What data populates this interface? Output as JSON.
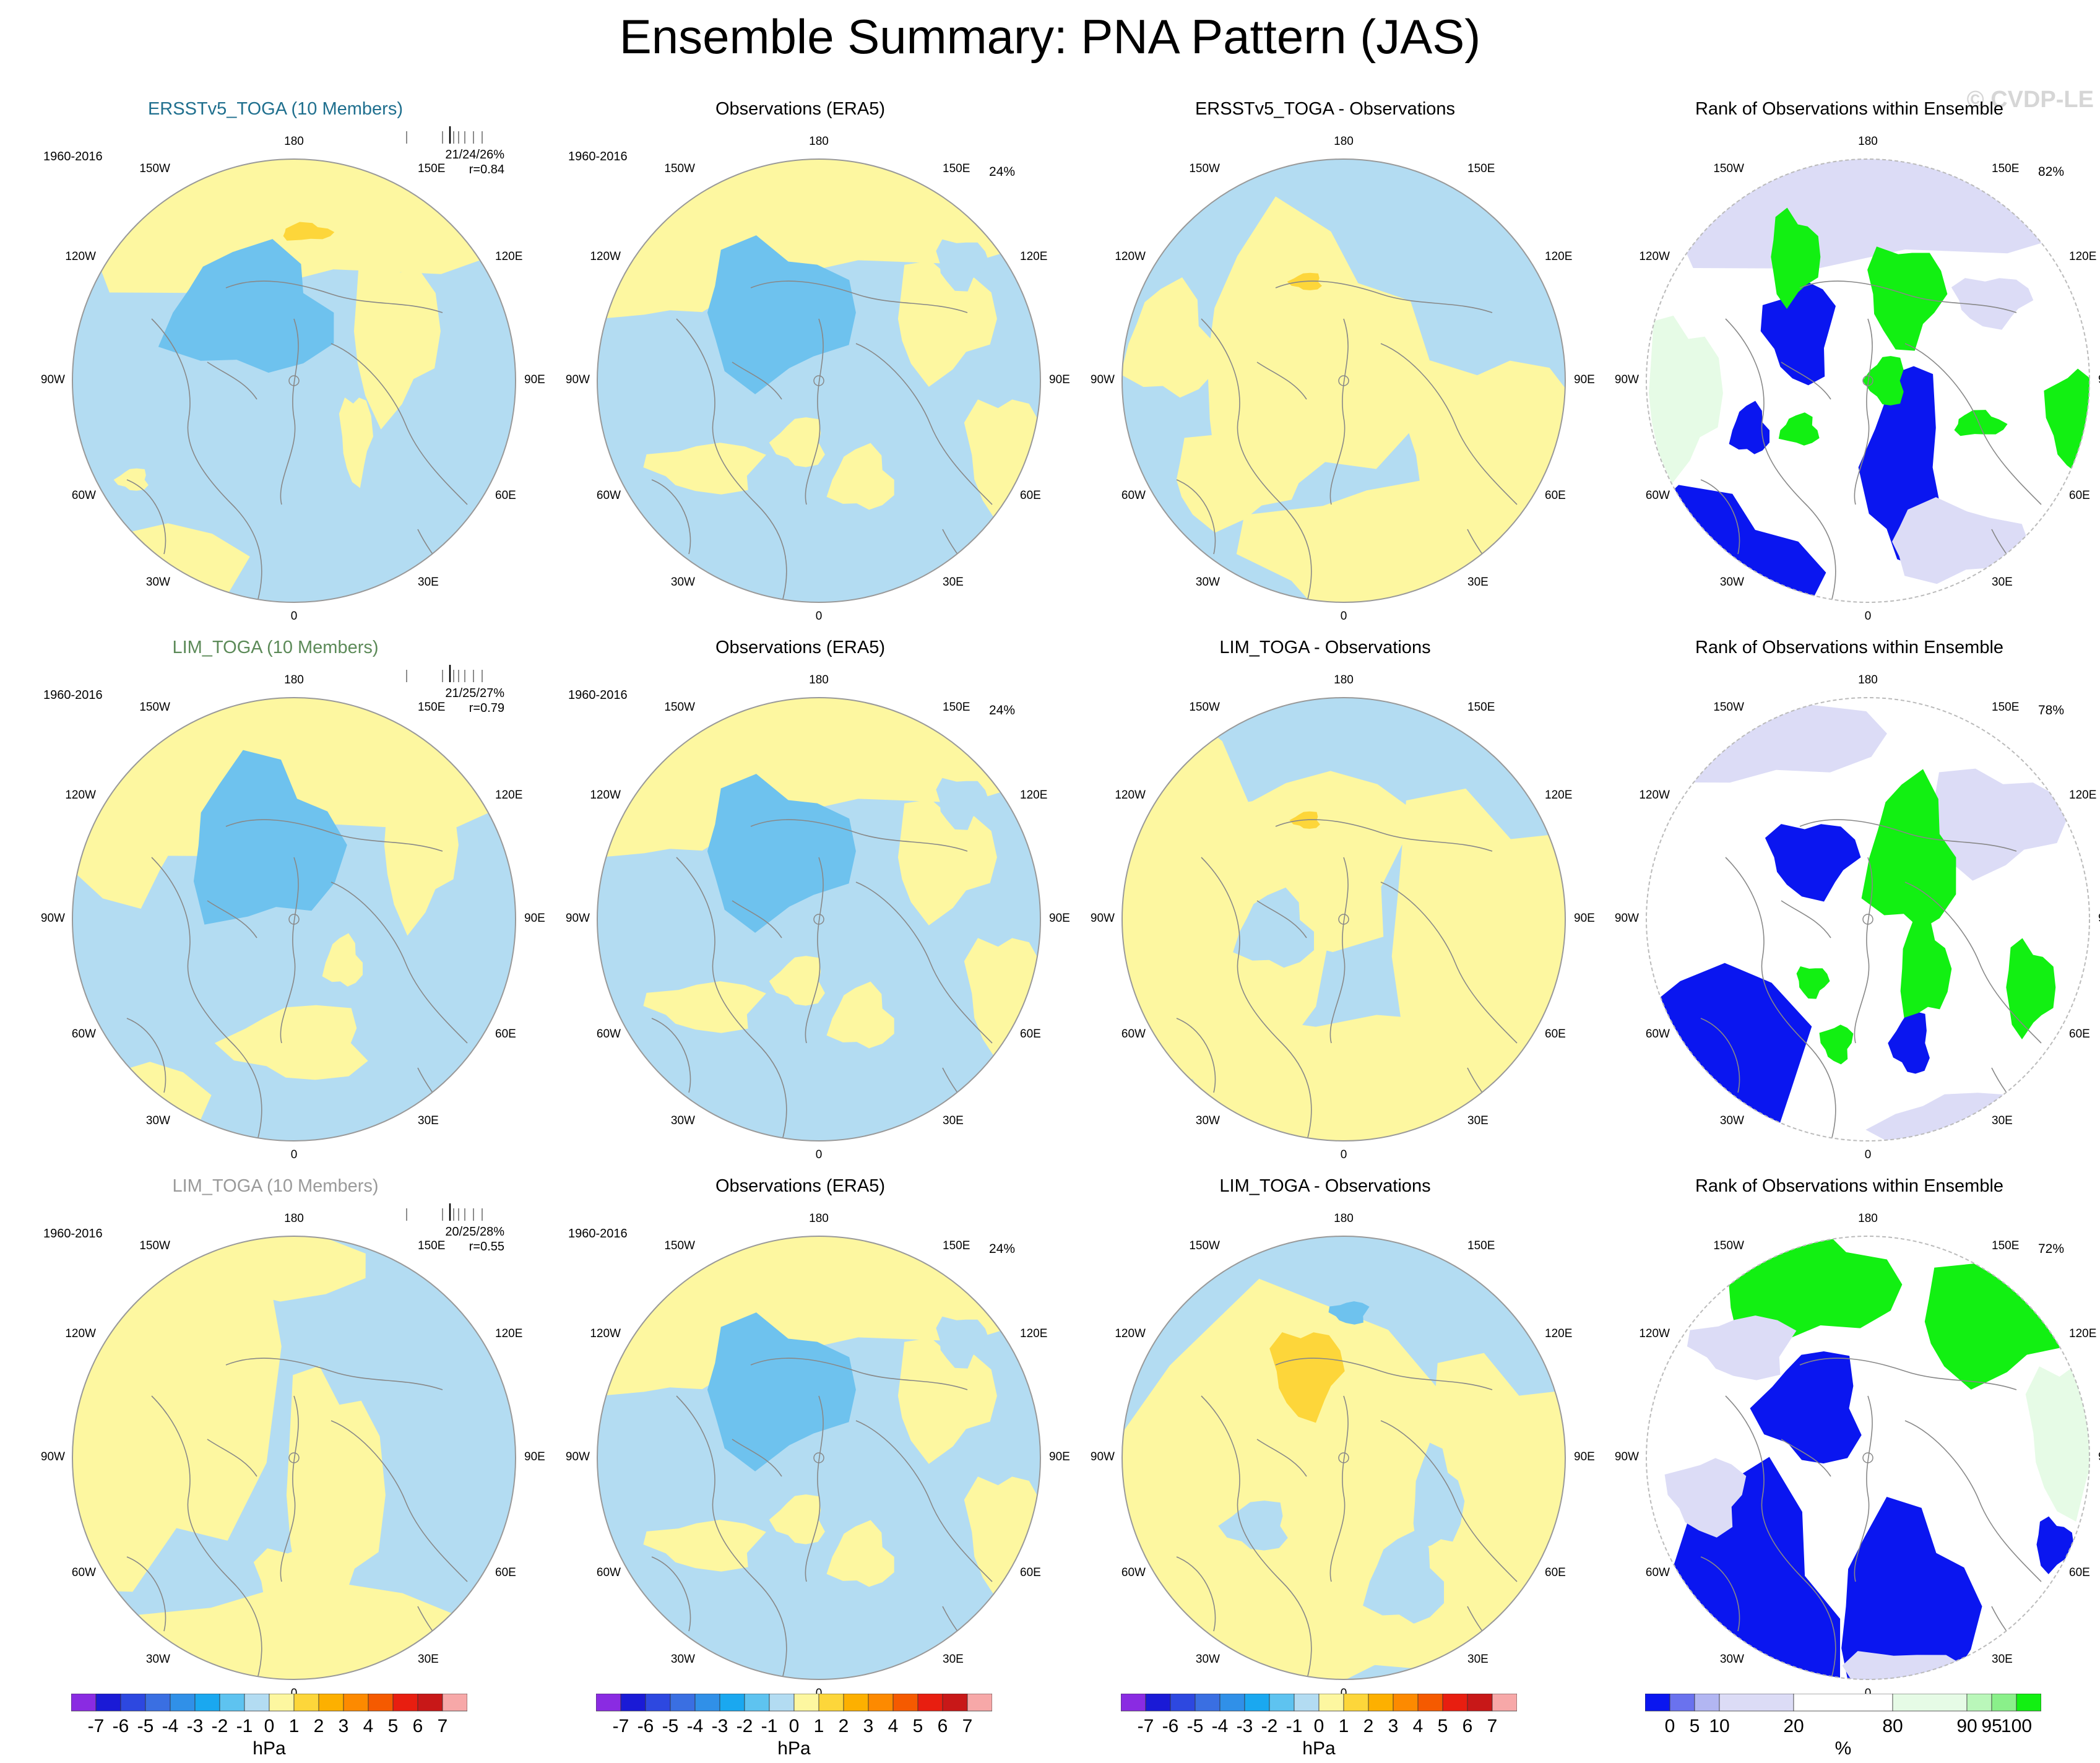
{
  "title": "Ensemble Summary: PNA Pattern (JAS)",
  "watermark": "© CVDP-LE",
  "rows": [
    {
      "ensemble": {
        "title": "ERSSTv5_TOGA (10 Members)",
        "period": "1960-2016",
        "stats": "21/24/26%",
        "r": "r=0.84"
      },
      "obs": {
        "title": "Observations (ERA5)",
        "period": "1960-2016",
        "pct": "24%"
      },
      "diff": {
        "title": "ERSSTv5_TOGA - Observations"
      },
      "rank": {
        "title": "Rank of Observations within Ensemble",
        "pct": "82%"
      }
    },
    {
      "ensemble": {
        "title": "LIM_TOGA (10 Members)",
        "period": "1960-2016",
        "stats": "21/25/27%",
        "r": "r=0.79"
      },
      "obs": {
        "title": "Observations (ERA5)",
        "period": "1960-2016",
        "pct": "24%"
      },
      "diff": {
        "title": "LIM_TOGA - Observations"
      },
      "rank": {
        "title": "Rank of Observations within Ensemble",
        "pct": "78%"
      }
    },
    {
      "ensemble": {
        "title": "LIM_TOGA (10 Members)",
        "period": "1960-2016",
        "stats": "20/25/28%",
        "r": "r=0.55"
      },
      "obs": {
        "title": "Observations (ERA5)",
        "period": "1960-2016",
        "pct": "24%"
      },
      "diff": {
        "title": "LIM_TOGA - Observations"
      },
      "rank": {
        "title": "Rank of Observations within Ensemble",
        "pct": "72%"
      }
    }
  ],
  "longitude_labels": {
    "top": "180",
    "bottom": "0",
    "upper_left": "150W",
    "upper_right": "150E",
    "mid_upper_left": "120W",
    "mid_upper_right": "120E",
    "left": "90W",
    "right": "90E",
    "mid_lower_left": "60W",
    "mid_lower_right": "60E",
    "lower_left": "30W",
    "lower_right": "30E"
  },
  "colorbar_hpa": {
    "unit": "hPa",
    "tick_labels": [
      "-7",
      "-6",
      "-5",
      "-4",
      "-3",
      "-2",
      "-1",
      "0",
      "1",
      "2",
      "3",
      "4",
      "5",
      "6",
      "7"
    ],
    "colors": [
      "#8a2be2",
      "#1a1ad6",
      "#2d48e0",
      "#3a6fe2",
      "#3090e8",
      "#1aa8f0",
      "#5ec3f0",
      "#b3dcf2",
      "#fdf7a0",
      "#fdd63a",
      "#fdb000",
      "#fd8a00",
      "#f55a00",
      "#e81e10",
      "#c81818",
      "#f7a8a8"
    ]
  },
  "colorbar_rank": {
    "unit": "%",
    "tick_labels": [
      "0",
      "5",
      "10",
      "20",
      "80",
      "90",
      "95",
      "100"
    ],
    "colors": [
      "#0a16f0",
      "#6a72ee",
      "#b2b6f2",
      "#dcdcf6",
      "#ffffff",
      "#e6fbe6",
      "#baf7ba",
      "#8af08a",
      "#12f012"
    ]
  }
}
